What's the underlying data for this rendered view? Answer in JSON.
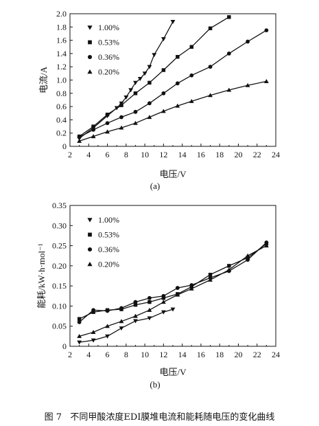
{
  "figure_caption": {
    "number": "图 7",
    "text": "不同甲酸浓度EDI膜堆电流和能耗随电压的变化曲线"
  },
  "chart_data": [
    {
      "type": "line",
      "panel_label": "(a)",
      "xlabel": "电压/V",
      "ylabel": "电流/A",
      "xlim": [
        2,
        24
      ],
      "ylim": [
        0,
        2.0
      ],
      "xticks": [
        2,
        4,
        6,
        8,
        10,
        12,
        14,
        16,
        18,
        20,
        22,
        24
      ],
      "yticks": [
        0,
        0.2,
        0.4,
        0.6,
        0.8,
        1.0,
        1.2,
        1.4,
        1.6,
        1.8,
        2.0
      ],
      "ytick_labels": [
        "0",
        "0.2",
        "0.4",
        "0.6",
        "0.8",
        "1.0",
        "1.2",
        "1.4",
        "1.6",
        "1.8",
        "2.0"
      ],
      "legend_position": "top-left",
      "series": [
        {
          "name": "1.00%",
          "marker": "triangle-down",
          "x": [
            3,
            4.5,
            6,
            7,
            7.5,
            8,
            8.5,
            9,
            9.5,
            10,
            10.5,
            11,
            12,
            13
          ],
          "y": [
            0.12,
            0.28,
            0.46,
            0.58,
            0.65,
            0.74,
            0.85,
            0.96,
            1.02,
            1.1,
            1.2,
            1.38,
            1.62,
            1.88
          ]
        },
        {
          "name": "0.53%",
          "marker": "square",
          "x": [
            3,
            4.5,
            6,
            7.5,
            9,
            10.5,
            12,
            13.5,
            15,
            17,
            19
          ],
          "y": [
            0.15,
            0.3,
            0.48,
            0.62,
            0.8,
            0.96,
            1.15,
            1.35,
            1.5,
            1.78,
            1.95
          ]
        },
        {
          "name": "0.36%",
          "marker": "circle",
          "x": [
            3,
            4.5,
            6,
            7.5,
            9,
            10.5,
            12,
            13.5,
            15,
            17,
            19,
            21,
            23
          ],
          "y": [
            0.14,
            0.25,
            0.35,
            0.44,
            0.52,
            0.65,
            0.8,
            0.95,
            1.07,
            1.2,
            1.4,
            1.58,
            1.75
          ]
        },
        {
          "name": "0.20%",
          "marker": "triangle-up",
          "x": [
            3,
            4.5,
            6,
            7.5,
            9,
            10.5,
            12,
            13.5,
            15,
            17,
            19,
            21,
            23
          ],
          "y": [
            0.08,
            0.15,
            0.22,
            0.28,
            0.35,
            0.44,
            0.53,
            0.61,
            0.68,
            0.77,
            0.85,
            0.92,
            0.98
          ]
        }
      ]
    },
    {
      "type": "line",
      "panel_label": "(b)",
      "xlabel": "电压/V",
      "ylabel": "能耗/kW·h·mol⁻¹",
      "xlim": [
        2,
        24
      ],
      "ylim": [
        0,
        0.35
      ],
      "xticks": [
        2,
        4,
        6,
        8,
        10,
        12,
        14,
        16,
        18,
        20,
        22,
        24
      ],
      "yticks": [
        0,
        0.05,
        0.1,
        0.15,
        0.2,
        0.25,
        0.3,
        0.35
      ],
      "ytick_labels": [
        "0",
        "0.05",
        "0.10",
        "0.15",
        "0.20",
        "0.25",
        "0.30",
        "0.35"
      ],
      "legend_position": "top-left",
      "series": [
        {
          "name": "1.00%",
          "marker": "triangle-down",
          "x": [
            3,
            4.5,
            6,
            7.5,
            9,
            10.5,
            12,
            13
          ],
          "y": [
            0.01,
            0.015,
            0.025,
            0.045,
            0.063,
            0.07,
            0.085,
            0.092
          ]
        },
        {
          "name": "0.53%",
          "marker": "square",
          "x": [
            3,
            4.5,
            6,
            7.5,
            9,
            10.5,
            12,
            13.5,
            15,
            17,
            19,
            21,
            23
          ],
          "y": [
            0.068,
            0.085,
            0.09,
            0.092,
            0.103,
            0.11,
            0.12,
            0.13,
            0.148,
            0.178,
            0.2,
            0.22,
            0.255
          ]
        },
        {
          "name": "0.36%",
          "marker": "circle",
          "x": [
            3,
            4.5,
            6,
            7.5,
            9,
            10.5,
            12,
            13.5,
            15,
            17,
            19,
            21,
            23
          ],
          "y": [
            0.06,
            0.09,
            0.088,
            0.095,
            0.11,
            0.12,
            0.125,
            0.145,
            0.152,
            0.17,
            0.187,
            0.215,
            0.258
          ]
        },
        {
          "name": "0.20%",
          "marker": "triangle-up",
          "x": [
            3,
            4.5,
            6,
            7.5,
            9,
            10.5,
            12,
            13.5,
            15,
            17,
            19,
            21,
            23
          ],
          "y": [
            0.025,
            0.035,
            0.05,
            0.062,
            0.075,
            0.09,
            0.11,
            0.128,
            0.143,
            0.165,
            0.19,
            0.225,
            0.25
          ]
        }
      ]
    }
  ]
}
